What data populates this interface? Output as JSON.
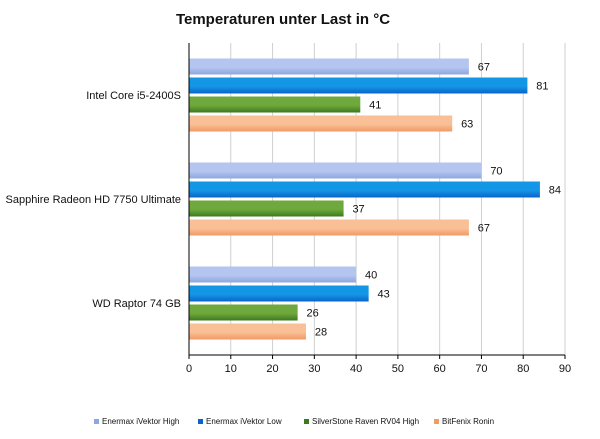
{
  "chart_data": {
    "type": "bar",
    "orientation": "horizontal",
    "title": "Temperaturen  unter Last in °C",
    "categories": [
      "Intel Core i5-2400S",
      "Sapphire Radeon HD 7750 Ultimate",
      "WD Raptor 74 GB"
    ],
    "series": [
      {
        "name": "Enermax iVektor High",
        "values": [
          67,
          70,
          40
        ],
        "color": "#b4c6f0",
        "color_dark": "#8ea6e0"
      },
      {
        "name": "Enermax iVektor Low",
        "values": [
          81,
          84,
          43
        ],
        "color": "#1496e6",
        "color_dark": "#0a64c8"
      },
      {
        "name": "SilverStone Raven RV04 High",
        "values": [
          41,
          37,
          26
        ],
        "color": "#6fa83c",
        "color_dark": "#3c7a1e"
      },
      {
        "name": "BitFenix Ronin",
        "values": [
          63,
          67,
          28
        ],
        "color": "#f9bf96",
        "color_dark": "#f29a64"
      }
    ],
    "xlim": [
      0,
      90
    ],
    "xticks": [
      0,
      10,
      20,
      30,
      40,
      50,
      60,
      70,
      80,
      90
    ],
    "xlabel": "",
    "ylabel": "",
    "grid": true,
    "legend": "bottom"
  }
}
